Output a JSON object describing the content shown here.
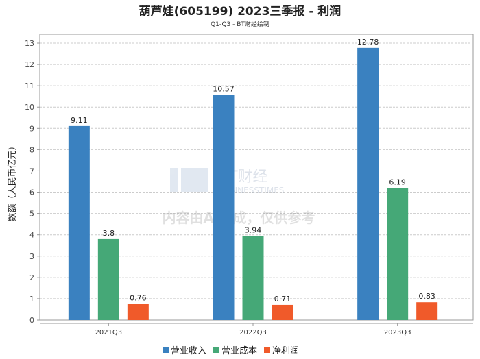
{
  "chart_data": {
    "type": "bar",
    "title": "葫芦娃(605199) 2023三季报 - 利润",
    "subtitle": "Q1-Q3 - BT财经绘制",
    "xlabel": "",
    "ylabel": "数额（人民币亿元）",
    "categories": [
      "2021Q3",
      "2022Q3",
      "2023Q3"
    ],
    "series": [
      {
        "name": "营业收入",
        "color": "#3a81c0",
        "values": [
          9.11,
          10.57,
          12.78
        ],
        "labels": [
          "9.11",
          "10.57",
          "12.78"
        ]
      },
      {
        "name": "营业成本",
        "color": "#45a877",
        "values": [
          3.8,
          3.94,
          6.19
        ],
        "labels": [
          "3.8",
          "3.94",
          "6.19"
        ]
      },
      {
        "name": "净利润",
        "color": "#f05a2a",
        "values": [
          0.76,
          0.71,
          0.83
        ],
        "labels": [
          "0.76",
          "0.71",
          "0.83"
        ]
      }
    ],
    "ylim": [
      0,
      13
    ],
    "yticks": [
      0,
      1,
      2,
      3,
      4,
      5,
      6,
      7,
      8,
      9,
      10,
      11,
      12,
      13
    ],
    "grid": true,
    "legend": "bottom-center"
  },
  "watermark": {
    "brand": "BT财经",
    "brand_sub": "BUSINESSTIMES",
    "notice": "内容由AI生成，仅供参考"
  }
}
